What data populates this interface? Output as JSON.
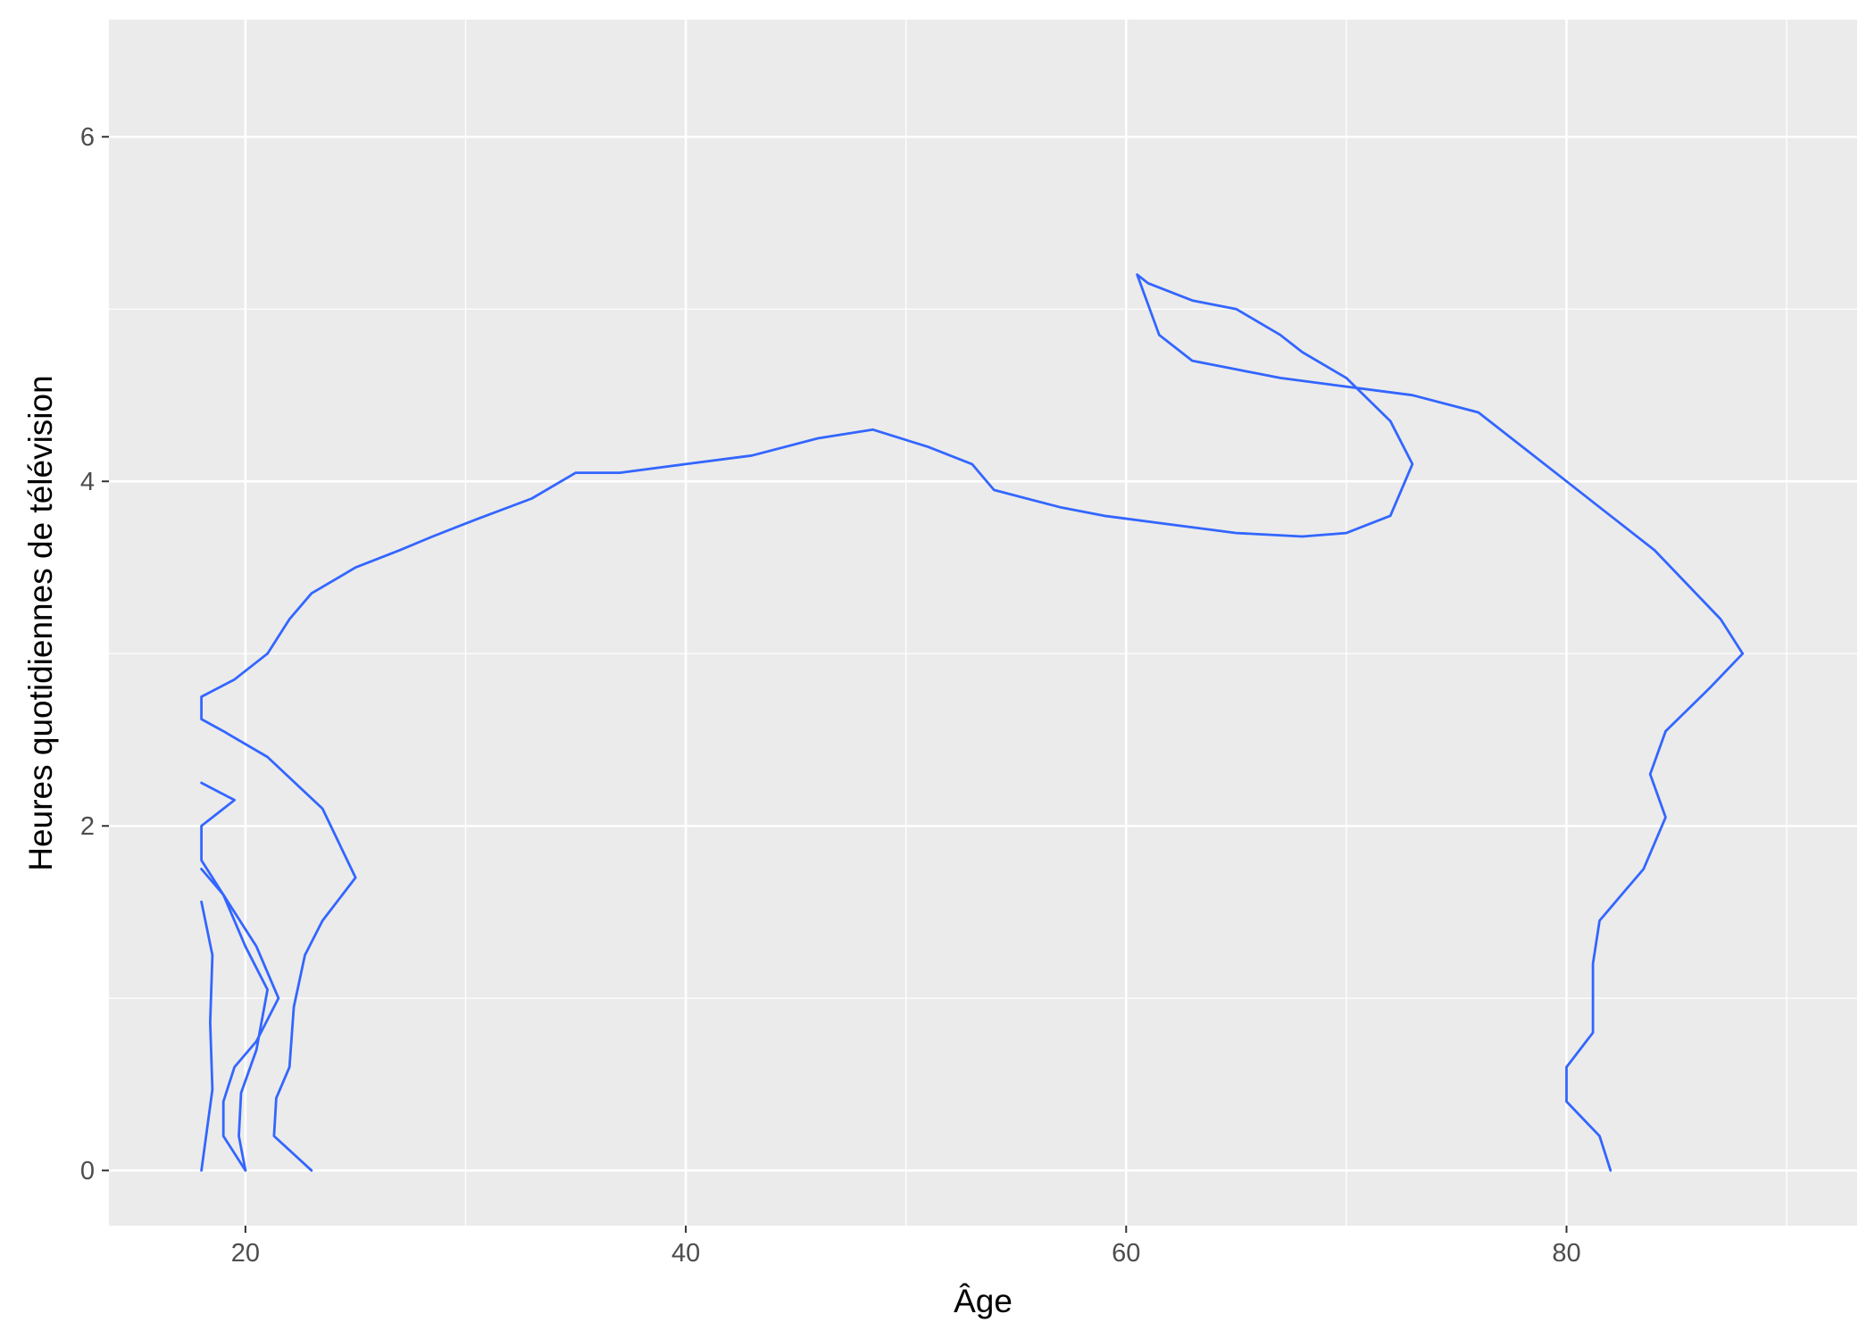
{
  "chart_data": {
    "type": "contour",
    "title": "",
    "xlabel": "Âge",
    "ylabel": "Heures quotidiennes de télévision",
    "xlim": [
      13.8,
      93.2
    ],
    "ylim": [
      -0.32,
      6.68
    ],
    "x_ticks": [
      20,
      40,
      60,
      80
    ],
    "x_minor": [
      30,
      50,
      70,
      90
    ],
    "y_ticks": [
      0,
      2,
      4,
      6
    ],
    "y_minor": [
      1,
      3,
      5
    ],
    "x_tick_labels": [
      "20",
      "40",
      "60",
      "80"
    ],
    "y_tick_labels": [
      "0",
      "2",
      "4",
      "6"
    ],
    "grid": true,
    "background": "#ebebeb",
    "line_color": "#3366ff",
    "contours": [
      [
        [
          18,
          0
        ],
        [
          18.5,
          0.47
        ],
        [
          18.4,
          0.86
        ],
        [
          18.5,
          1.25
        ],
        [
          18,
          1.56
        ]
      ],
      [
        [
          18,
          1.75
        ],
        [
          19,
          1.6
        ],
        [
          20.5,
          1.3
        ],
        [
          21.5,
          1.0
        ],
        [
          20.5,
          0.75
        ],
        [
          19.5,
          0.6
        ],
        [
          19,
          0.4
        ],
        [
          19,
          0.2
        ],
        [
          20,
          0
        ]
      ],
      [
        [
          23,
          0
        ],
        [
          21.3,
          0.2
        ],
        [
          21.4,
          0.42
        ],
        [
          22,
          0.6
        ],
        [
          22.2,
          0.95
        ],
        [
          22.7,
          1.25
        ],
        [
          23.5,
          1.45
        ],
        [
          25,
          1.7
        ],
        [
          23.5,
          2.1
        ],
        [
          21,
          2.4
        ],
        [
          19,
          2.55
        ],
        [
          18,
          2.62
        ],
        [
          18,
          2.75
        ],
        [
          19.5,
          2.85
        ],
        [
          21,
          3.0
        ],
        [
          22,
          3.2
        ],
        [
          23,
          3.35
        ],
        [
          25,
          3.5
        ],
        [
          27,
          3.6
        ],
        [
          28.5,
          3.68
        ],
        [
          30.5,
          3.78
        ],
        [
          33,
          3.9
        ],
        [
          35,
          4.05
        ],
        [
          37,
          4.05
        ],
        [
          40,
          4.1
        ],
        [
          43,
          4.15
        ],
        [
          46,
          4.25
        ],
        [
          48.5,
          4.3
        ],
        [
          51,
          4.2
        ],
        [
          53,
          4.1
        ],
        [
          54,
          3.95
        ],
        [
          57,
          3.85
        ],
        [
          59,
          3.8
        ],
        [
          62,
          3.75
        ],
        [
          65,
          3.7
        ],
        [
          68,
          3.68
        ],
        [
          70,
          3.7
        ],
        [
          72,
          3.8
        ],
        [
          73,
          4.1
        ],
        [
          72,
          4.35
        ],
        [
          70,
          4.6
        ],
        [
          68,
          4.75
        ],
        [
          67,
          4.85
        ],
        [
          65,
          5.0
        ],
        [
          63,
          5.05
        ],
        [
          62,
          5.1
        ],
        [
          61,
          5.15
        ],
        [
          60.5,
          5.2
        ],
        [
          61.5,
          4.85
        ],
        [
          63,
          4.7
        ],
        [
          65,
          4.65
        ],
        [
          67,
          4.6
        ],
        [
          70,
          4.55
        ],
        [
          73,
          4.5
        ],
        [
          76,
          4.4
        ],
        [
          78,
          4.2
        ],
        [
          80,
          4.0
        ],
        [
          82,
          3.8
        ],
        [
          84,
          3.6
        ],
        [
          85.5,
          3.4
        ],
        [
          87,
          3.2
        ],
        [
          88,
          3.0
        ],
        [
          86.5,
          2.8
        ],
        [
          84.5,
          2.55
        ],
        [
          83.8,
          2.3
        ],
        [
          84.5,
          2.05
        ],
        [
          83.5,
          1.75
        ],
        [
          82.5,
          1.6
        ],
        [
          81.5,
          1.45
        ],
        [
          81.2,
          1.2
        ],
        [
          81.2,
          0.8
        ],
        [
          80,
          0.6
        ],
        [
          80,
          0.4
        ],
        [
          81.5,
          0.2
        ],
        [
          82,
          0
        ]
      ],
      [
        [
          18,
          2.25
        ],
        [
          19.5,
          2.15
        ],
        [
          18.5,
          2.05
        ],
        [
          18,
          2.0
        ],
        [
          18,
          1.8
        ],
        [
          19,
          1.6
        ],
        [
          20,
          1.3
        ],
        [
          21,
          1.05
        ],
        [
          20.5,
          0.7
        ],
        [
          19.8,
          0.45
        ],
        [
          19.7,
          0.2
        ],
        [
          20,
          0
        ]
      ]
    ]
  }
}
